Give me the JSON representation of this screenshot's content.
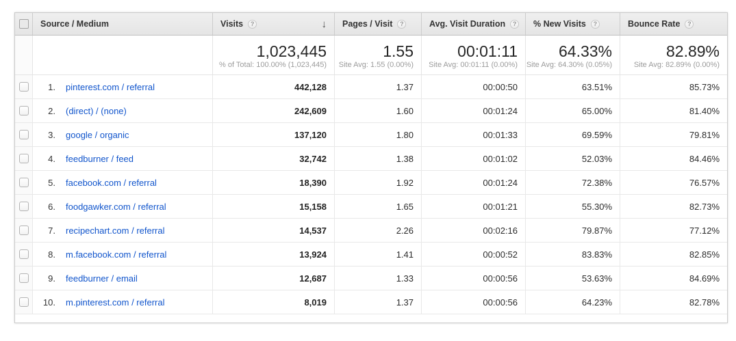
{
  "icons": {
    "help": "?",
    "sort_desc": "↓"
  },
  "colors": {
    "link_blue": "#1155cc",
    "header_bg": "#e9e9e9",
    "header_text": "#333333",
    "subtext_gray": "#9b9b9b"
  },
  "table": {
    "columns": [
      {
        "label": "Source / Medium"
      },
      {
        "label": "Visits",
        "sorted": "descending"
      },
      {
        "label": "Pages / Visit"
      },
      {
        "label": "Avg. Visit Duration"
      },
      {
        "label": "% New Visits"
      },
      {
        "label": "Bounce Rate"
      }
    ],
    "summary": {
      "visits": "1,023,445",
      "visits_sub": "% of Total: 100.00% (1,023,445)",
      "pages": "1.55",
      "pages_sub": "Site Avg: 1.55 (0.00%)",
      "duration": "00:01:11",
      "duration_sub": "Site Avg: 00:01:11 (0.00%)",
      "new_visits": "64.33%",
      "new_visits_sub": "Site Avg: 64.30% (0.05%)",
      "bounce": "82.89%",
      "bounce_sub": "Site Avg: 82.89% (0.00%)"
    },
    "rows": [
      {
        "rank": "1.",
        "source": "pinterest.com / referral",
        "visits": "442,128",
        "pages": "1.37",
        "duration": "00:00:50",
        "new_visits": "63.51%",
        "bounce": "85.73%"
      },
      {
        "rank": "2.",
        "source": "(direct) / (none)",
        "visits": "242,609",
        "pages": "1.60",
        "duration": "00:01:24",
        "new_visits": "65.00%",
        "bounce": "81.40%"
      },
      {
        "rank": "3.",
        "source": "google / organic",
        "visits": "137,120",
        "pages": "1.80",
        "duration": "00:01:33",
        "new_visits": "69.59%",
        "bounce": "79.81%"
      },
      {
        "rank": "4.",
        "source": "feedburner / feed",
        "visits": "32,742",
        "pages": "1.38",
        "duration": "00:01:02",
        "new_visits": "52.03%",
        "bounce": "84.46%"
      },
      {
        "rank": "5.",
        "source": "facebook.com / referral",
        "visits": "18,390",
        "pages": "1.92",
        "duration": "00:01:24",
        "new_visits": "72.38%",
        "bounce": "76.57%"
      },
      {
        "rank": "6.",
        "source": "foodgawker.com / referral",
        "visits": "15,158",
        "pages": "1.65",
        "duration": "00:01:21",
        "new_visits": "55.30%",
        "bounce": "82.73%"
      },
      {
        "rank": "7.",
        "source": "recipechart.com / referral",
        "visits": "14,537",
        "pages": "2.26",
        "duration": "00:02:16",
        "new_visits": "79.87%",
        "bounce": "77.12%"
      },
      {
        "rank": "8.",
        "source": "m.facebook.com / referral",
        "visits": "13,924",
        "pages": "1.41",
        "duration": "00:00:52",
        "new_visits": "83.83%",
        "bounce": "82.85%"
      },
      {
        "rank": "9.",
        "source": "feedburner / email",
        "visits": "12,687",
        "pages": "1.33",
        "duration": "00:00:56",
        "new_visits": "53.63%",
        "bounce": "84.69%"
      },
      {
        "rank": "10.",
        "source": "m.pinterest.com / referral",
        "visits": "8,019",
        "pages": "1.37",
        "duration": "00:00:56",
        "new_visits": "64.23%",
        "bounce": "82.78%"
      }
    ]
  }
}
